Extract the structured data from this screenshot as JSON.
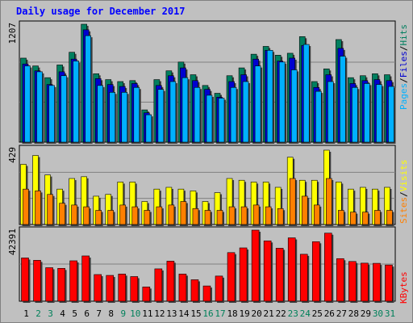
{
  "title": "Daily usage for December 2017",
  "colors": {
    "hits": "#007f5f",
    "files": "#0000d0",
    "pages": "#00b0ff",
    "visits": "#ffff00",
    "sites": "#ff8000",
    "kbytes": "#ff0000",
    "title": "#0000ff",
    "weekend": "#00805a"
  },
  "chart_data": [
    {
      "type": "bar",
      "title": "Daily usage for December 2017",
      "categories": [
        "1",
        "2",
        "3",
        "4",
        "5",
        "6",
        "7",
        "8",
        "9",
        "10",
        "11",
        "12",
        "13",
        "14",
        "15",
        "16",
        "17",
        "18",
        "19",
        "20",
        "21",
        "22",
        "23",
        "24",
        "25",
        "26",
        "27",
        "28",
        "29",
        "30",
        "31"
      ],
      "weekend_days": [
        "2",
        "3",
        "9",
        "10",
        "16",
        "17",
        "23",
        "24",
        "30",
        "31"
      ],
      "ymax_label": "1207",
      "ylim": [
        0,
        1207
      ],
      "series": [
        {
          "name": "Hits",
          "values": [
            860,
            780,
            660,
            790,
            920,
            1207,
            700,
            640,
            620,
            630,
            330,
            640,
            730,
            820,
            690,
            580,
            500,
            680,
            760,
            900,
            980,
            890,
            910,
            1080,
            620,
            750,
            1050,
            660,
            680,
            700,
            690
          ]
        },
        {
          "name": "Files",
          "values": [
            800,
            730,
            590,
            720,
            850,
            1150,
            650,
            590,
            570,
            600,
            300,
            580,
            680,
            760,
            630,
            540,
            460,
            620,
            690,
            850,
            940,
            830,
            860,
            990,
            560,
            690,
            960,
            600,
            630,
            640,
            630
          ]
        },
        {
          "name": "Pages",
          "values": [
            780,
            720,
            580,
            680,
            830,
            1090,
            580,
            510,
            510,
            560,
            280,
            540,
            620,
            660,
            560,
            480,
            450,
            560,
            620,
            780,
            940,
            820,
            740,
            1000,
            520,
            620,
            880,
            560,
            600,
            590,
            570
          ]
        }
      ],
      "legend": [
        "Pages",
        "Files",
        "Hits"
      ]
    },
    {
      "type": "bar",
      "categories": [
        "1",
        "2",
        "3",
        "4",
        "5",
        "6",
        "7",
        "8",
        "9",
        "10",
        "11",
        "12",
        "13",
        "14",
        "15",
        "16",
        "17",
        "18",
        "19",
        "20",
        "21",
        "22",
        "23",
        "24",
        "25",
        "26",
        "27",
        "28",
        "29",
        "30",
        "31"
      ],
      "ymax_label": "429",
      "ylim": [
        0,
        429
      ],
      "series": [
        {
          "name": "Visits",
          "values": [
            340,
            390,
            280,
            200,
            260,
            270,
            160,
            170,
            240,
            240,
            130,
            200,
            210,
            200,
            190,
            130,
            180,
            260,
            250,
            240,
            240,
            210,
            380,
            250,
            250,
            420,
            240,
            200,
            210,
            200,
            210
          ]
        },
        {
          "name": "Sites",
          "values": [
            200,
            190,
            170,
            120,
            110,
            100,
            80,
            80,
            110,
            100,
            80,
            100,
            110,
            130,
            90,
            80,
            80,
            100,
            100,
            110,
            100,
            90,
            260,
            160,
            110,
            260,
            80,
            70,
            70,
            80,
            80
          ]
        }
      ],
      "legend": [
        "Sites",
        "Visits"
      ]
    },
    {
      "type": "bar",
      "categories": [
        "1",
        "2",
        "3",
        "4",
        "5",
        "6",
        "7",
        "8",
        "9",
        "10",
        "11",
        "12",
        "13",
        "14",
        "15",
        "16",
        "17",
        "18",
        "19",
        "20",
        "21",
        "22",
        "23",
        "24",
        "25",
        "26",
        "27",
        "28",
        "29",
        "30",
        "31"
      ],
      "ymax_label": "42391",
      "ylim": [
        0,
        42391
      ],
      "series": [
        {
          "name": "KBytes",
          "values": [
            25800,
            24400,
            20000,
            19600,
            24100,
            27000,
            15900,
            15400,
            16200,
            14700,
            8500,
            19300,
            23900,
            16200,
            12800,
            9100,
            15000,
            29000,
            31800,
            42391,
            36000,
            31600,
            37800,
            28000,
            35500,
            40600,
            25400,
            23700,
            22700,
            22600,
            21600
          ]
        }
      ],
      "legend": [
        "KBytes"
      ]
    }
  ]
}
